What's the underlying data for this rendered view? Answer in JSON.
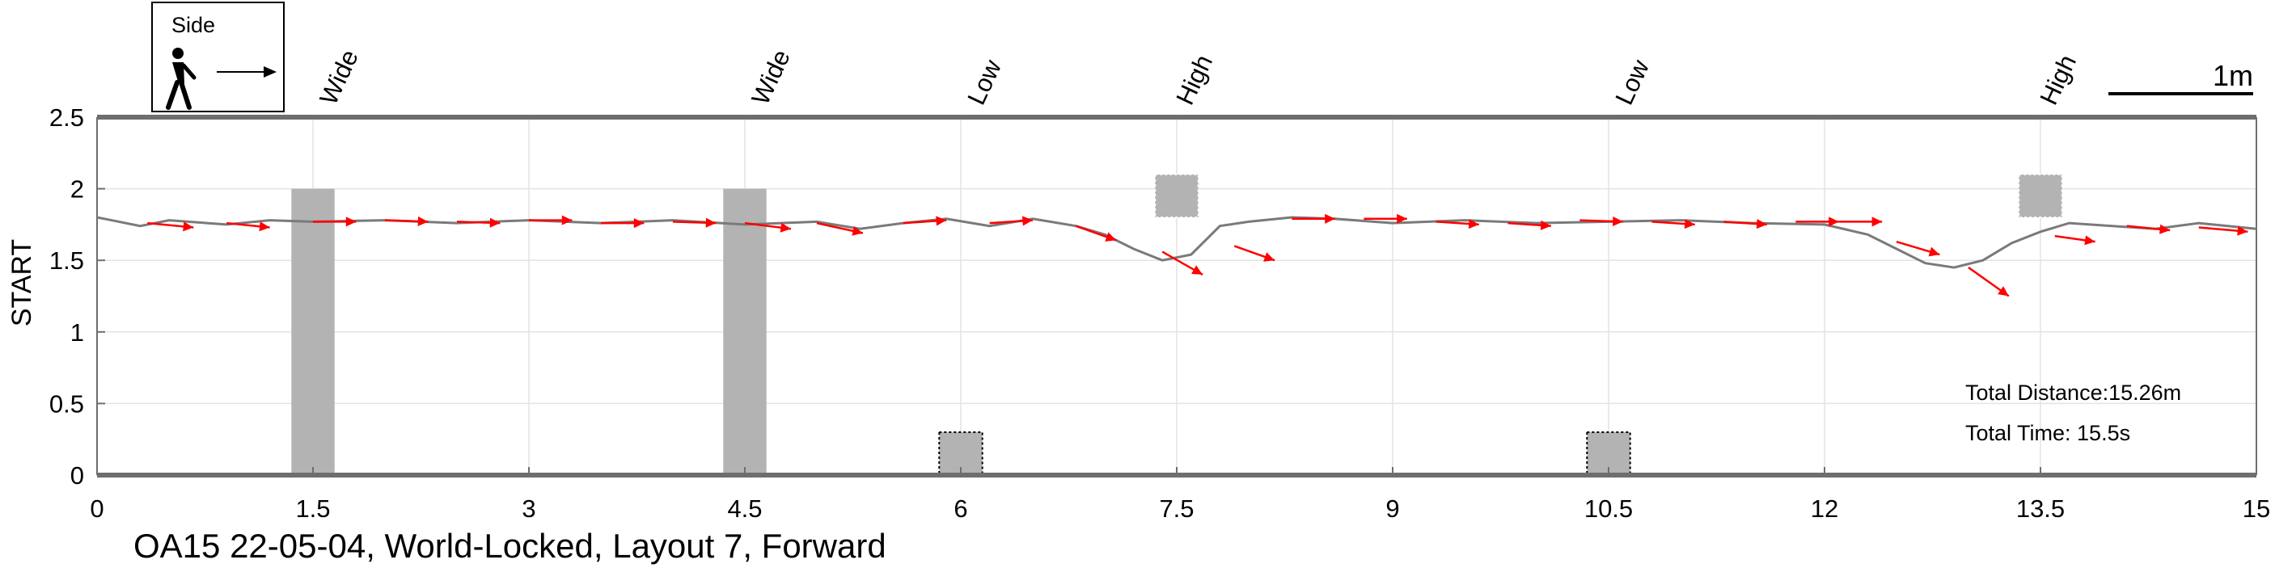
{
  "chart_data": {
    "type": "line",
    "title": "OA15 22-05-04, World-Locked, Layout 7, Forward",
    "xlabel": "",
    "ylabel": "START",
    "xlim": [
      0,
      15
    ],
    "ylim": [
      0,
      2.5
    ],
    "xticks": [
      "0",
      "1.5",
      "3",
      "4.5",
      "6",
      "7.5",
      "9",
      "10.5",
      "12",
      "13.5",
      "15"
    ],
    "yticks": [
      "0",
      "0.5",
      "1",
      "1.5",
      "2",
      "2.5"
    ],
    "grid": true,
    "path": {
      "color": "#7a7a7a",
      "x": [
        0,
        0.3,
        0.5,
        0.9,
        1.2,
        1.5,
        2.0,
        2.5,
        3.0,
        3.5,
        4.0,
        4.5,
        5.0,
        5.3,
        5.6,
        5.9,
        6.2,
        6.5,
        6.8,
        7.0,
        7.2,
        7.4,
        7.6,
        7.8,
        8.0,
        8.3,
        8.6,
        9.0,
        9.5,
        10.0,
        10.5,
        11.0,
        11.5,
        12.0,
        12.3,
        12.5,
        12.7,
        12.9,
        13.1,
        13.3,
        13.5,
        13.7,
        14.0,
        14.3,
        14.6,
        15.0
      ],
      "y": [
        1.8,
        1.74,
        1.78,
        1.75,
        1.78,
        1.77,
        1.78,
        1.76,
        1.78,
        1.76,
        1.78,
        1.75,
        1.77,
        1.72,
        1.76,
        1.79,
        1.74,
        1.79,
        1.74,
        1.68,
        1.58,
        1.5,
        1.54,
        1.74,
        1.77,
        1.8,
        1.79,
        1.76,
        1.78,
        1.76,
        1.77,
        1.78,
        1.76,
        1.75,
        1.68,
        1.58,
        1.48,
        1.45,
        1.5,
        1.62,
        1.7,
        1.76,
        1.74,
        1.72,
        1.76,
        1.72
      ]
    },
    "arrows": {
      "color": "#ff0000",
      "items": [
        {
          "x": 0.35,
          "y": 1.76,
          "dx": 0.32,
          "dy": -0.03
        },
        {
          "x": 0.9,
          "y": 1.76,
          "dx": 0.3,
          "dy": -0.03
        },
        {
          "x": 1.5,
          "y": 1.77,
          "dx": 0.3,
          "dy": 0.0
        },
        {
          "x": 2.0,
          "y": 1.78,
          "dx": 0.3,
          "dy": -0.01
        },
        {
          "x": 2.5,
          "y": 1.77,
          "dx": 0.3,
          "dy": -0.01
        },
        {
          "x": 3.0,
          "y": 1.78,
          "dx": 0.3,
          "dy": 0.0
        },
        {
          "x": 3.5,
          "y": 1.76,
          "dx": 0.3,
          "dy": 0.0
        },
        {
          "x": 4.0,
          "y": 1.77,
          "dx": 0.3,
          "dy": -0.01
        },
        {
          "x": 4.5,
          "y": 1.76,
          "dx": 0.32,
          "dy": -0.04
        },
        {
          "x": 5.0,
          "y": 1.76,
          "dx": 0.32,
          "dy": -0.07
        },
        {
          "x": 5.6,
          "y": 1.76,
          "dx": 0.3,
          "dy": 0.02
        },
        {
          "x": 6.2,
          "y": 1.76,
          "dx": 0.3,
          "dy": 0.02
        },
        {
          "x": 6.8,
          "y": 1.74,
          "dx": 0.28,
          "dy": -0.1
        },
        {
          "x": 7.4,
          "y": 1.56,
          "dx": 0.28,
          "dy": -0.16
        },
        {
          "x": 7.9,
          "y": 1.6,
          "dx": 0.28,
          "dy": -0.1
        },
        {
          "x": 8.3,
          "y": 1.79,
          "dx": 0.3,
          "dy": 0.0
        },
        {
          "x": 8.8,
          "y": 1.79,
          "dx": 0.3,
          "dy": 0.0
        },
        {
          "x": 9.3,
          "y": 1.77,
          "dx": 0.3,
          "dy": -0.02
        },
        {
          "x": 9.8,
          "y": 1.76,
          "dx": 0.3,
          "dy": -0.02
        },
        {
          "x": 10.3,
          "y": 1.78,
          "dx": 0.3,
          "dy": -0.01
        },
        {
          "x": 10.8,
          "y": 1.77,
          "dx": 0.3,
          "dy": -0.02
        },
        {
          "x": 11.3,
          "y": 1.77,
          "dx": 0.3,
          "dy": -0.02
        },
        {
          "x": 11.8,
          "y": 1.77,
          "dx": 0.3,
          "dy": 0.0
        },
        {
          "x": 12.1,
          "y": 1.77,
          "dx": 0.3,
          "dy": 0.0
        },
        {
          "x": 12.5,
          "y": 1.63,
          "dx": 0.3,
          "dy": -0.09
        },
        {
          "x": 13.0,
          "y": 1.45,
          "dx": 0.28,
          "dy": -0.2
        },
        {
          "x": 13.6,
          "y": 1.67,
          "dx": 0.28,
          "dy": -0.04
        },
        {
          "x": 14.1,
          "y": 1.74,
          "dx": 0.3,
          "dy": -0.03
        },
        {
          "x": 14.6,
          "y": 1.73,
          "dx": 0.34,
          "dy": -0.03
        }
      ]
    },
    "obstacles": [
      {
        "label": "Wide",
        "kind": "wide",
        "x0": 1.35,
        "x1": 1.65,
        "y0": 0,
        "y1": 2.0,
        "label_x": 1.65
      },
      {
        "label": "Wide",
        "kind": "wide",
        "x0": 4.35,
        "x1": 4.65,
        "y0": 0,
        "y1": 2.0,
        "label_x": 4.65
      },
      {
        "label": "Low",
        "kind": "low",
        "x0": 5.85,
        "x1": 6.15,
        "y0": 0,
        "y1": 0.3,
        "label_x": 6.15
      },
      {
        "label": "High",
        "kind": "high",
        "x0": 7.35,
        "x1": 7.65,
        "y0": 1.8,
        "y1": 2.1,
        "label_x": 7.6
      },
      {
        "label": "Low",
        "kind": "low",
        "x0": 10.35,
        "x1": 10.65,
        "y0": 0,
        "y1": 0.3,
        "label_x": 10.65
      },
      {
        "label": "High",
        "kind": "high",
        "x0": 13.35,
        "x1": 13.65,
        "y0": 1.8,
        "y1": 2.1,
        "label_x": 13.6
      }
    ],
    "annotations": {
      "total_distance": "Total Distance:15.26m",
      "total_time": "Total Time: 15.5s",
      "scale_label": "1m",
      "scale_length_m": 1,
      "legend_label": "Side"
    }
  },
  "colors": {
    "obstacle_fill": "#b3b3b3",
    "axis": "#6e6e6e",
    "grid": "#e3e3e3"
  }
}
